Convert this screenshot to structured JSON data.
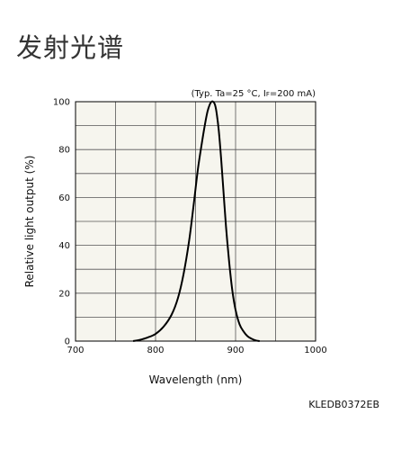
{
  "page": {
    "title": "发射光谱",
    "code": "KLEDB0372EB"
  },
  "chart_data": {
    "type": "line",
    "title": "",
    "note": "(Typ. Ta=25 °C, IF=200 mA)",
    "note_main": "(Typ. Ta=25 °C, I",
    "note_sub": "F",
    "note_tail": "=200 mA)",
    "xlabel": "Wavelength (nm)",
    "ylabel": "Relative light output (%)",
    "xlim": [
      700,
      1000
    ],
    "ylim": [
      0,
      100
    ],
    "x_ticks": [
      700,
      800,
      900,
      1000
    ],
    "y_ticks": [
      0,
      20,
      40,
      60,
      80,
      100
    ],
    "x_grid_step": 50,
    "y_grid_step": 10,
    "grid": true,
    "plot_background": "#f6f5ee",
    "line_color": "#000000",
    "series": [
      {
        "x": [
          772,
          780,
          790,
          800,
          810,
          820,
          828,
          835,
          842,
          848,
          853,
          858,
          862,
          865,
          868,
          870,
          872,
          874,
          876,
          879,
          882,
          885,
          888,
          892,
          896,
          900,
          905,
          910,
          915,
          920,
          925,
          930
        ],
        "y": [
          0,
          0.5,
          1.5,
          3,
          6,
          11,
          18,
          28,
          42,
          58,
          72,
          83,
          91,
          96,
          99,
          100,
          100,
          99,
          96,
          88,
          76,
          62,
          48,
          33,
          21,
          13,
          7,
          4,
          2,
          1,
          0.3,
          0
        ]
      }
    ]
  }
}
